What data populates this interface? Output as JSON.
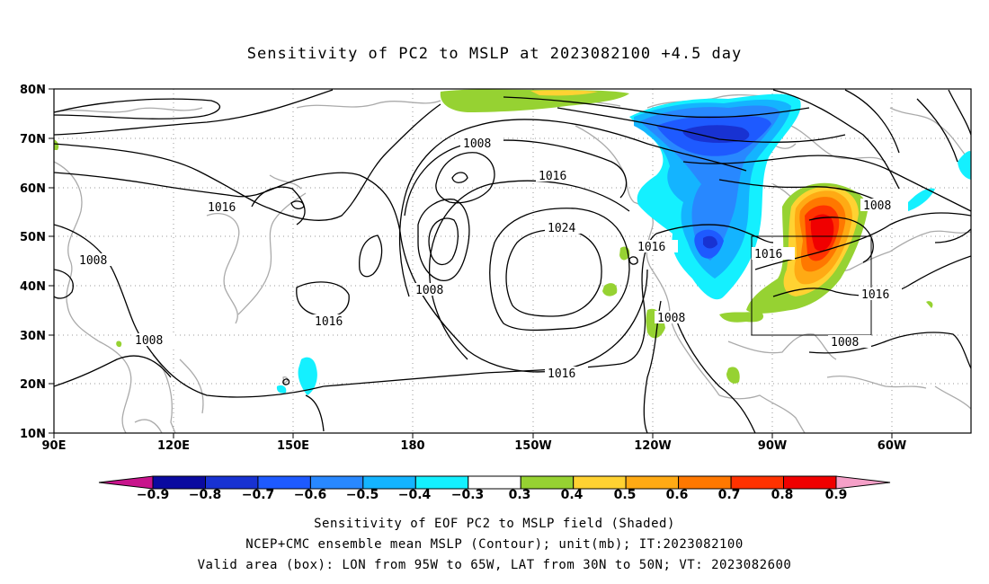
{
  "title": "Sensitivity of PC2 to MSLP at 2023082100 +4.5 day",
  "lat_labels": [
    "80N",
    "70N",
    "60N",
    "50N",
    "40N",
    "30N",
    "20N",
    "10N"
  ],
  "lon_labels": [
    "90E",
    "120E",
    "150E",
    "180",
    "150W",
    "120W",
    "90W",
    "60W"
  ],
  "contour_labels": {
    "l1008_a": "1008",
    "l1016_a": "1016",
    "l1008_b": "1008",
    "l1016_b": "1016",
    "l1024": "1024",
    "l1016_c": "1016",
    "l1008_c": "1008",
    "l1016_d": "1016",
    "l1008_d": "1008",
    "l1016_e": "1016",
    "l1008_e": "1008",
    "l1008_f": "1008",
    "l1016_f": "1016",
    "l1016_g": "1016",
    "l1008_g": "1008"
  },
  "colorbar": {
    "labels": [
      "−0.9",
      "−0.8",
      "−0.7",
      "−0.6",
      "−0.5",
      "−0.4",
      "−0.3",
      "0.3",
      "0.4",
      "0.5",
      "0.6",
      "0.7",
      "0.8",
      "0.9"
    ],
    "colors": [
      "#0a0aa0",
      "#1832d2",
      "#1e5aff",
      "#2888ff",
      "#14b4ff",
      "#14f0ff",
      "#ffffff",
      "#96d232",
      "#ffd232",
      "#ffaa14",
      "#ff7800",
      "#ff3200",
      "#f00000"
    ],
    "low_end_color": "#c8148c",
    "high_end_color": "#f5a0c8"
  },
  "captions": {
    "line1": "Sensitivity of EOF PC2 to MSLP field (Shaded)",
    "line2": "NCEP+CMC ensemble mean MSLP (Contour); unit(mb); IT:2023082100",
    "line3": "Valid area (box): LON from 95W to 65W, LAT from 30N to 50N; VT: 2023082600"
  }
}
